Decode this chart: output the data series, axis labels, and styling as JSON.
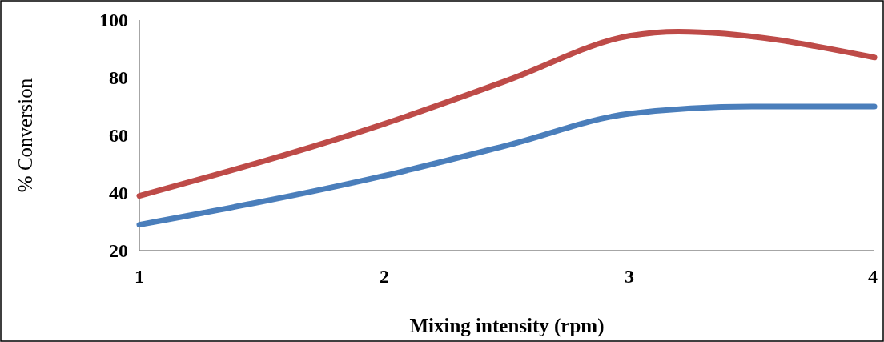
{
  "chart_data": {
    "type": "line",
    "xlabel": "Mixing intensity (rpm)",
    "ylabel": "% Conversion",
    "series": [
      {
        "color": "#4a7ebb",
        "x": [
          1,
          2,
          2.5,
          3,
          3.5,
          4
        ],
        "values": [
          29,
          46,
          56.5,
          67.5,
          70,
          70
        ]
      },
      {
        "color": "#be4b48",
        "x": [
          1,
          2,
          2.5,
          3,
          3.2,
          4
        ],
        "values": [
          39,
          64,
          79,
          94.5,
          96,
          87
        ]
      }
    ],
    "xlim": [
      1,
      4
    ],
    "xticks": [
      1,
      2,
      3,
      4
    ],
    "ylim": [
      20,
      100
    ],
    "yticks": [
      20,
      40,
      60,
      80,
      100
    ],
    "grid": false,
    "marker": "none",
    "line_style": "solid"
  }
}
